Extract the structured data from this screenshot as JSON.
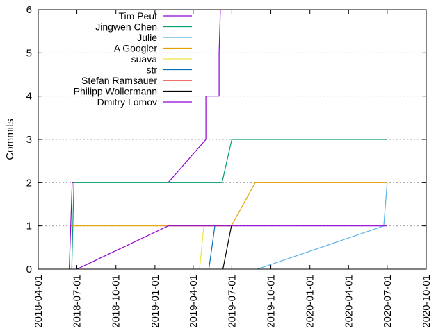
{
  "chart_data": {
    "type": "line",
    "title": "",
    "xlabel": "",
    "ylabel": "Commits",
    "xlim": [
      "2018-04-01",
      "2020-10-01"
    ],
    "ylim": [
      0,
      6
    ],
    "x_ticks": [
      "2018-04-01",
      "2018-07-01",
      "2018-10-01",
      "2019-01-01",
      "2019-04-01",
      "2019-07-01",
      "2019-10-01",
      "2020-01-01",
      "2020-04-01",
      "2020-07-01",
      "2020-10-01"
    ],
    "y_ticks": [
      0,
      1,
      2,
      3,
      4,
      5,
      6
    ],
    "grid": "horizontal dotted",
    "legend_position": "top-left",
    "series": [
      {
        "name": "Tim Peut",
        "color": "#9400d3",
        "points": [
          [
            "2019-02-01",
            2
          ],
          [
            "2019-05-01",
            3
          ],
          [
            "2019-05-01",
            4
          ],
          [
            "2019-06-01",
            4
          ],
          [
            "2019-06-01",
            5
          ],
          [
            "2019-06-04",
            6
          ],
          [
            "2019-06-12",
            6.4
          ]
        ]
      },
      {
        "name": "Jingwen Chen",
        "color": "#009e73",
        "points": [
          [
            "2018-06-19",
            0
          ],
          [
            "2018-06-24",
            2
          ],
          [
            "2019-06-08",
            2
          ],
          [
            "2019-07-01",
            3
          ],
          [
            "2020-07-01",
            3
          ]
        ]
      },
      {
        "name": "Julie",
        "color": "#56b4e9",
        "points": [
          [
            "2019-08-30",
            0
          ],
          [
            "2020-06-23",
            1
          ],
          [
            "2020-07-01",
            2
          ]
        ]
      },
      {
        "name": "A Googler",
        "color": "#e69f00",
        "points": [
          [
            "2018-06-17",
            1
          ],
          [
            "2019-06-30",
            1
          ],
          [
            "2019-08-25",
            2
          ],
          [
            "2020-07-01",
            2
          ]
        ]
      },
      {
        "name": "suava",
        "color": "#f0e442",
        "points": [
          [
            "2019-04-16",
            0
          ],
          [
            "2019-04-26",
            1
          ]
        ]
      },
      {
        "name": "str",
        "color": "#0072b2",
        "points": [
          [
            "2019-05-08",
            0
          ],
          [
            "2019-05-22",
            1
          ]
        ]
      },
      {
        "name": "Stefan Ramsauer",
        "color": "#e51e10",
        "points": []
      },
      {
        "name": "Philipp Wollermann",
        "color": "#000000",
        "points": [
          [
            "2019-06-10",
            0
          ],
          [
            "2019-06-30",
            1
          ]
        ]
      },
      {
        "name": "Dmitry Lomov",
        "color": "#9400d3",
        "points": [
          [
            "2018-06-13",
            0
          ],
          [
            "2018-06-20",
            2
          ],
          [
            "2018-06-25",
            2
          ]
        ]
      },
      {
        "name": "",
        "color": "#9400d3",
        "points": [
          [
            "2018-07-01",
            0
          ],
          [
            "2019-02-01",
            1
          ],
          [
            "2020-07-01",
            1
          ]
        ]
      }
    ]
  }
}
